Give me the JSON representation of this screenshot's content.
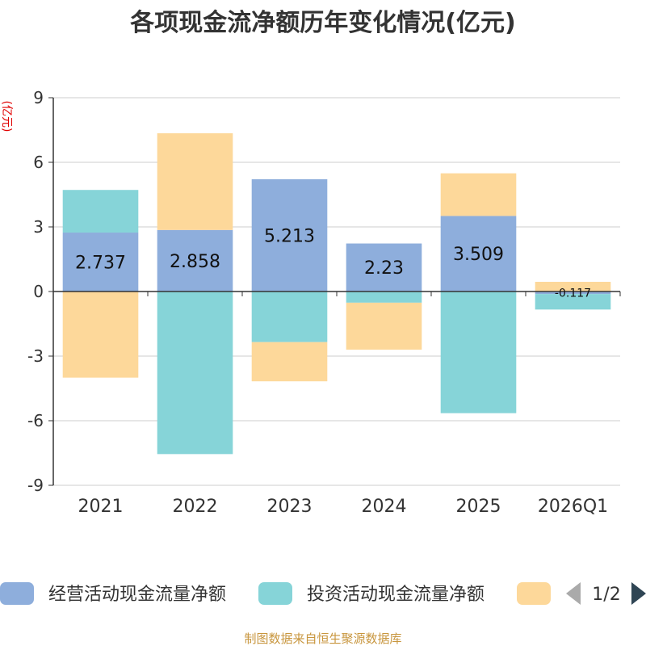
{
  "chart_data": {
    "type": "bar",
    "title": "各项现金流净额历年变化情况(亿元)",
    "ylabel": "(亿元)",
    "categories": [
      "2021",
      "2022",
      "2023",
      "2024",
      "2025",
      "2026Q1"
    ],
    "ylim": [
      -9,
      9
    ],
    "yticks": [
      9,
      6,
      3,
      0,
      -3,
      -6,
      -9
    ],
    "stacked": true,
    "grid": true,
    "series": [
      {
        "name": "经营活动现金流量净额",
        "color": "#8eaedc",
        "values": [
          2.737,
          2.858,
          5.213,
          2.23,
          3.509,
          -0.117
        ]
      },
      {
        "name": "投资活动现金流量净额",
        "color": "#86d4d8",
        "values": [
          1.98,
          -7.55,
          -2.35,
          -0.52,
          -5.65,
          -0.72
        ]
      },
      {
        "name": "",
        "color": "#fdd89a",
        "values": [
          -4.0,
          4.49,
          -1.82,
          -2.18,
          1.98,
          0.45
        ]
      }
    ],
    "data_labels": [
      "2.737",
      "2.858",
      "5.213",
      "2.23",
      "3.509",
      "-0.117"
    ],
    "legend": {
      "position": "bottom",
      "page": "1/2"
    }
  },
  "footer": {
    "source": "制图数据来自恒生聚源数据库"
  },
  "colors": {
    "title": "#333333",
    "ylabel": "#e00000",
    "footer": "#c8963e",
    "axis": "#333333",
    "grid": "#cccccc"
  }
}
